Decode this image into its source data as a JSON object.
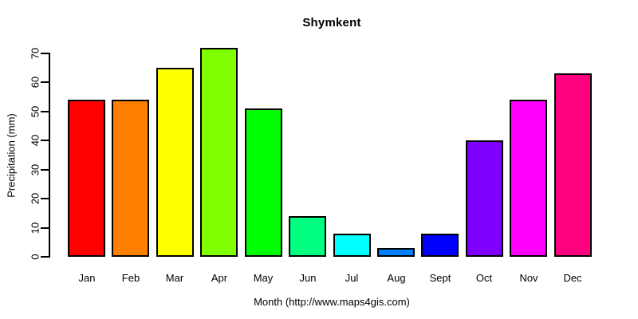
{
  "chart_data": {
    "type": "bar",
    "title": "Shymkent",
    "xlabel": "Month (http://www.maps4gis.com)",
    "ylabel": "Precipitation (mm)",
    "categories": [
      "Jan",
      "Feb",
      "Mar",
      "Apr",
      "May",
      "Jun",
      "Jul",
      "Aug",
      "Sept",
      "Oct",
      "Nov",
      "Dec"
    ],
    "values": [
      54,
      54,
      65,
      72,
      51,
      14,
      8,
      3,
      8,
      40,
      54,
      63
    ],
    "bar_colors": [
      "#FF0000",
      "#FF8000",
      "#FFFF00",
      "#80FF00",
      "#00FF00",
      "#00FF80",
      "#00FFFF",
      "#0080FF",
      "#0000FF",
      "#8000FF",
      "#FF00FF",
      "#FF0080"
    ],
    "bar_border_color": "#000000",
    "yticks": [
      0,
      10,
      20,
      30,
      40,
      50,
      60,
      70
    ],
    "ylim": [
      0,
      70
    ],
    "grid": false,
    "legend": "none",
    "background": "#FFFFFF",
    "text_color": "#000000"
  }
}
